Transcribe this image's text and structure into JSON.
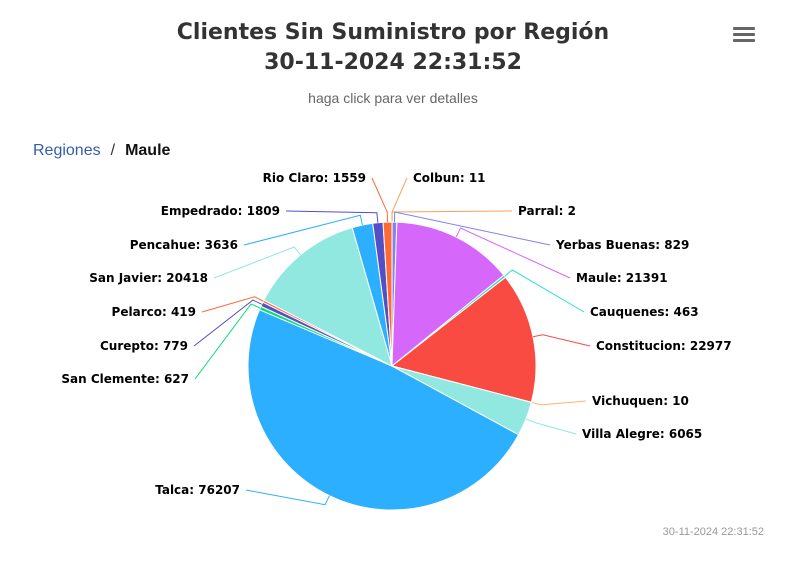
{
  "header": {
    "title_line1": "Clientes Sin Suministro por Región",
    "title_line2": "30-11-2024 22:31:52",
    "subtitle": "haga click para ver detalles",
    "menu_icon": "hamburger-menu-icon"
  },
  "breadcrumb": {
    "root": "Regiones",
    "separator": "/",
    "current": "Maule"
  },
  "credits": "30-11-2024 22:31:52",
  "chart_data": {
    "type": "pie",
    "title": "Clientes Sin Suministro por Región",
    "subtitle": "haga click para ver detalles",
    "slices": [
      {
        "name": "Colbun",
        "value": 11,
        "color": "#f7a35c"
      },
      {
        "name": "Parral",
        "value": 2,
        "color": "#f7a35c"
      },
      {
        "name": "Yerbas Buenas",
        "value": 829,
        "color": "#8085e9"
      },
      {
        "name": "Maule",
        "value": 21391,
        "color": "#d568fb"
      },
      {
        "name": "Cauquenes",
        "value": 463,
        "color": "#2ee0ca"
      },
      {
        "name": "Constitucion",
        "value": 22977,
        "color": "#fa4b42"
      },
      {
        "name": "Vichuquen",
        "value": 10,
        "color": "#feb56a"
      },
      {
        "name": "Villa Alegre",
        "value": 6065,
        "color": "#91e8e1"
      },
      {
        "name": "Talca",
        "value": 76207,
        "color": "#2caffe"
      },
      {
        "name": "San Clemente",
        "value": 627,
        "color": "#00e272"
      },
      {
        "name": "Curepto",
        "value": 779,
        "color": "#544fc5"
      },
      {
        "name": "Pelarco",
        "value": 419,
        "color": "#fe6a35"
      },
      {
        "name": "San Javier",
        "value": 20418,
        "color": "#91e8e1"
      },
      {
        "name": "Pencahue",
        "value": 3636,
        "color": "#2caffe"
      },
      {
        "name": "Empedrado",
        "value": 1809,
        "color": "#544fc5"
      },
      {
        "name": "Rio Claro",
        "value": 1559,
        "color": "#fe6a35"
      }
    ]
  }
}
